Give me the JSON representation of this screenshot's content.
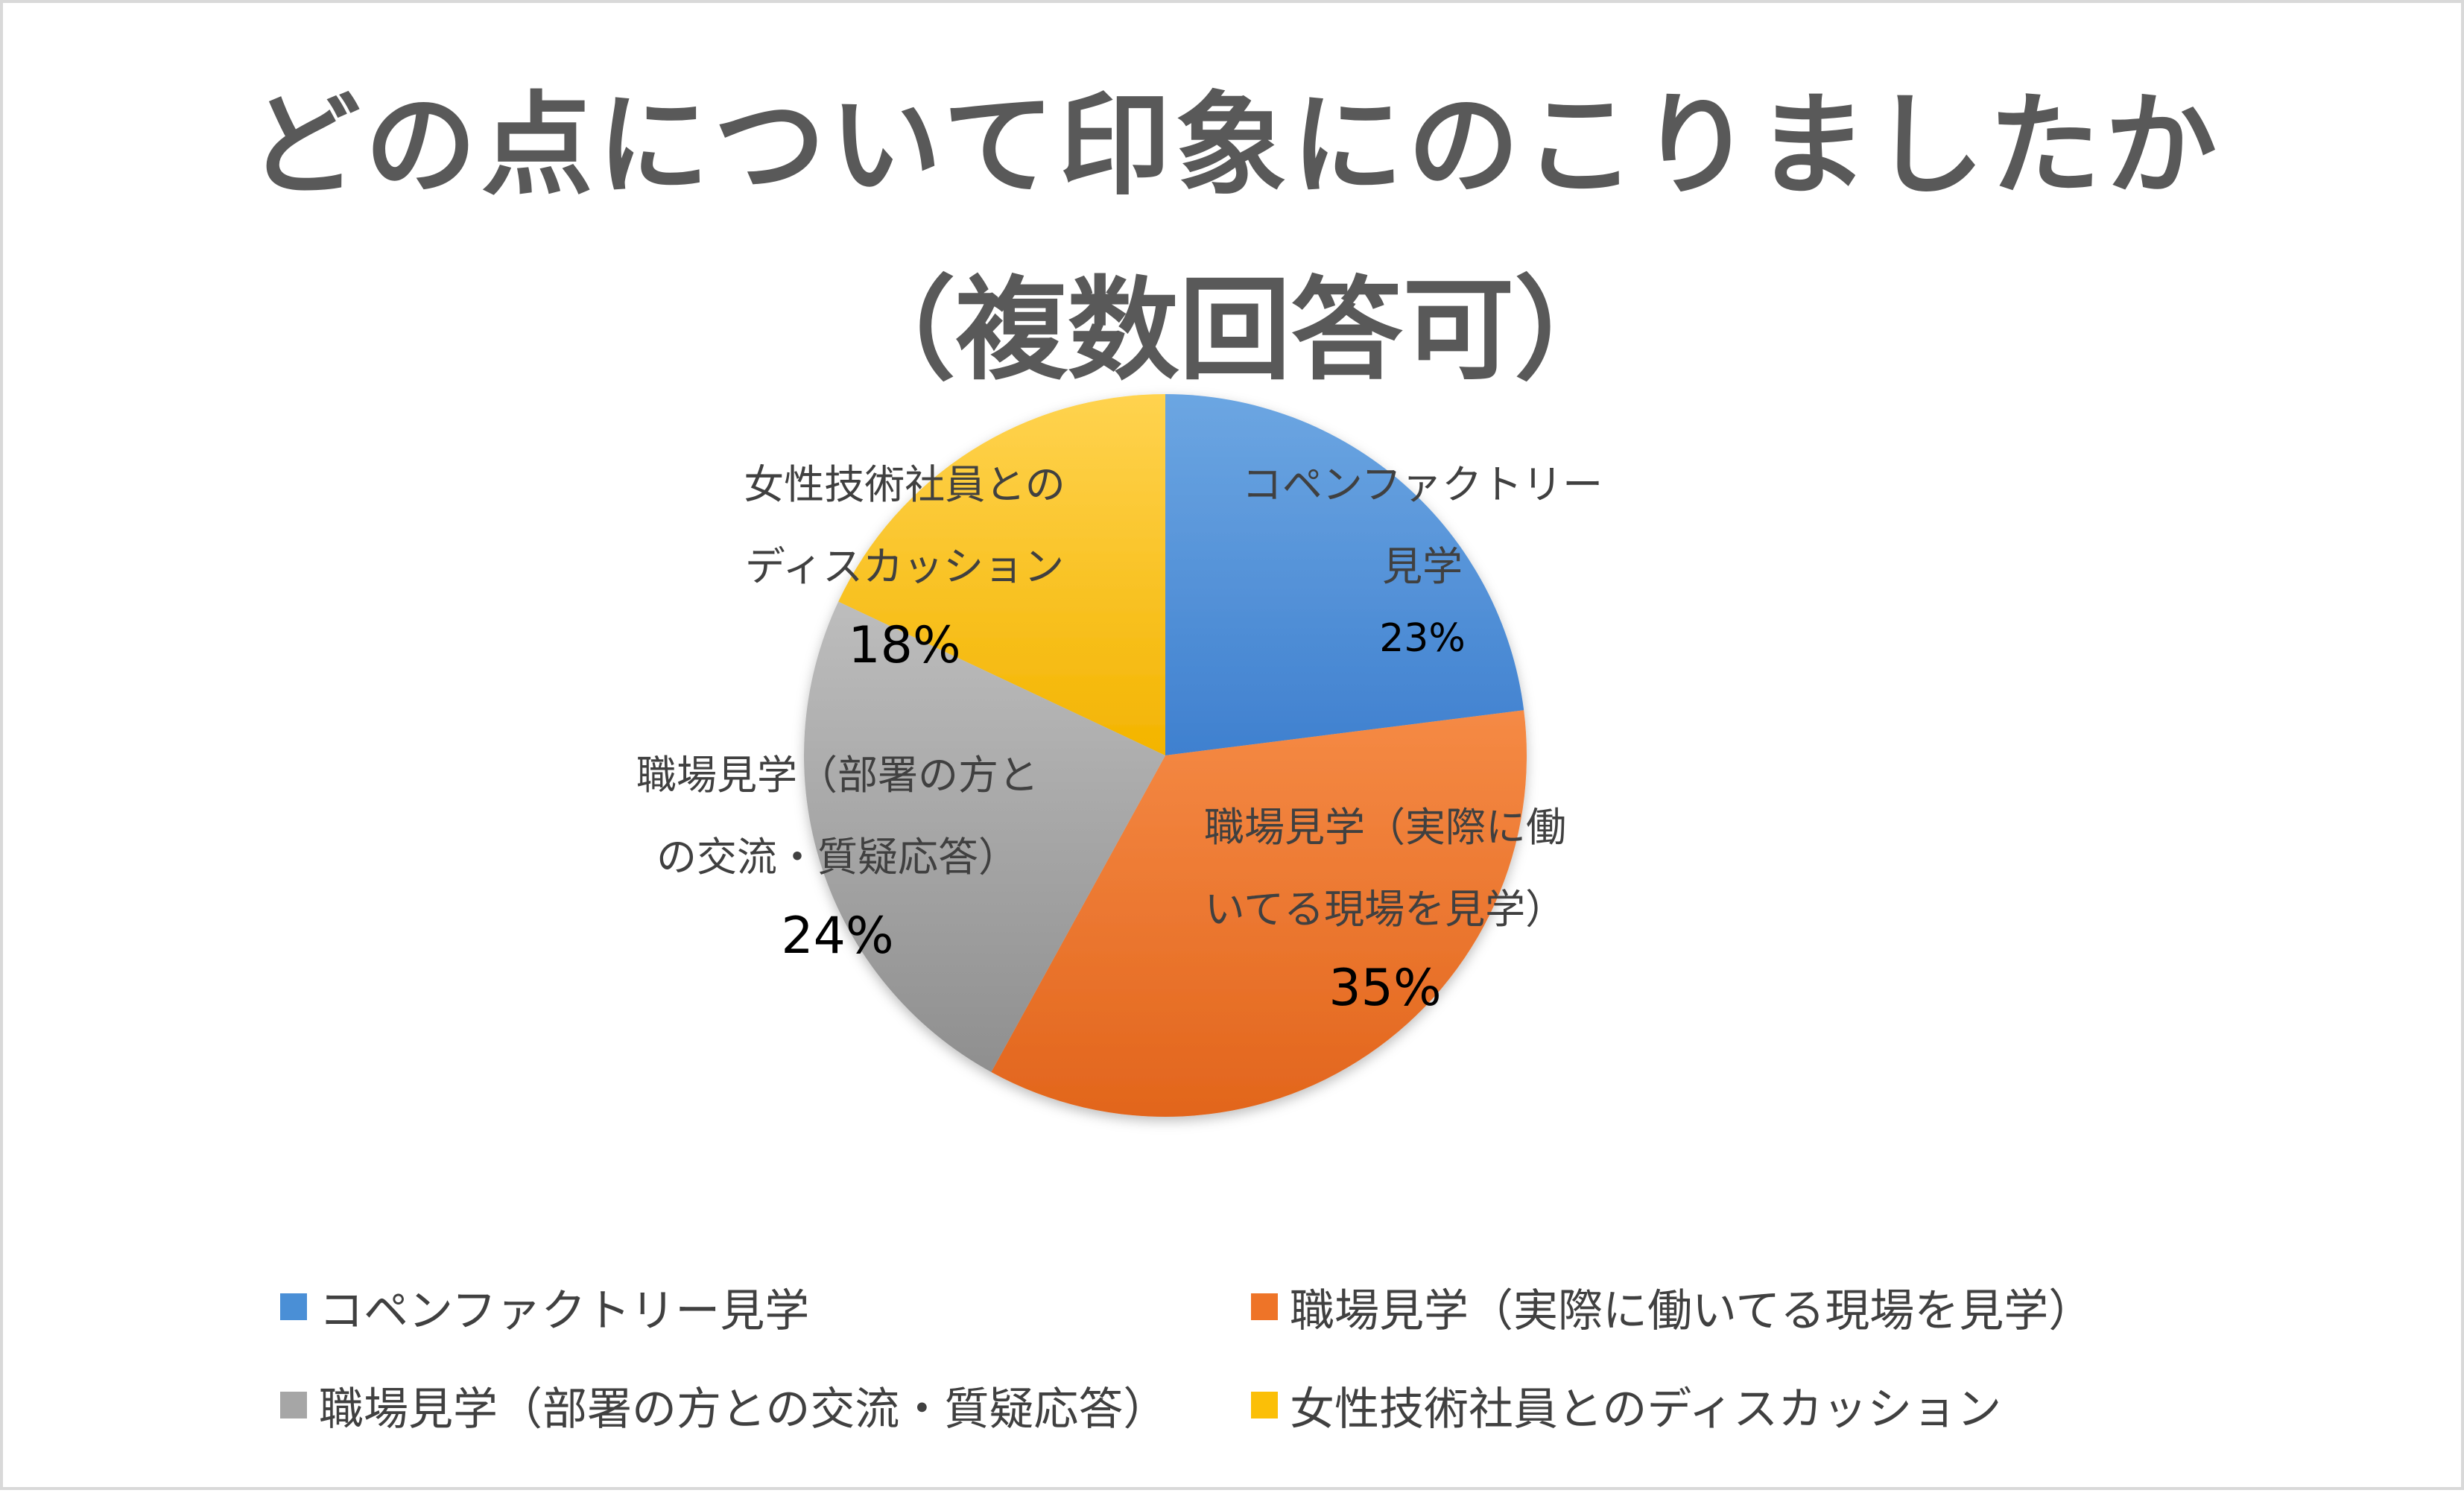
{
  "chart_data": {
    "type": "pie",
    "title": "どの点について印象にのこりましたか（複数回答可）",
    "title_lines": [
      "どの点について印象にのこりましたか",
      "（複数回答可）"
    ],
    "slices": [
      {
        "name": "コペンファクトリー見学",
        "label_lines": [
          "コペンファクトリー",
          "見学"
        ],
        "value": 23,
        "value_label": "23%",
        "color": "#4a8fd6"
      },
      {
        "name": "職場見学（実際に働いてる現場を見学）",
        "label_lines": [
          "職場見学（実際に働",
          "いてる現場を見学）"
        ],
        "value": 35,
        "value_label": "35%",
        "color": "#ee7428"
      },
      {
        "name": "職場見学（部署の方との交流・質疑応答）",
        "label_lines": [
          "職場見学（部署の方と",
          "の交流・質疑応答）"
        ],
        "value": 24,
        "value_label": "24%",
        "color": "#a6a6a6"
      },
      {
        "name": "女性技術社員とのディスカッション",
        "label_lines": [
          "女性技術社員との",
          "ディスカッション"
        ],
        "value": 18,
        "value_label": "18%",
        "color": "#fbbf07"
      }
    ],
    "start_angle_deg": 0,
    "direction": "clockwise",
    "legend_position": "bottom"
  }
}
